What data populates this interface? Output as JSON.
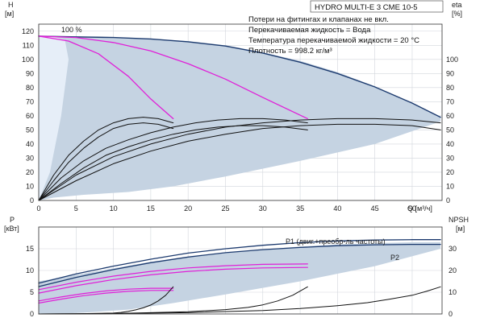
{
  "chart_data": [
    {
      "type": "line",
      "title": "HYDRO MULTI-E 3 CME 10-5",
      "notes": [
        "Потери на фитингах и клапанах не вкл.",
        "Перекачиваемая жидкость = Вода",
        "Температура перекачиваемой жидкости = 20 °C",
        "Плотность = 998.2 кг/м³"
      ],
      "curve_label": "100 %",
      "xlabel": "Q [м³/ч]",
      "ylabel_left": [
        "H",
        "[м]"
      ],
      "ylabel_right": [
        "eta",
        "[%]"
      ],
      "xlim": [
        0,
        54
      ],
      "ylim_left": [
        0,
        125
      ],
      "ylim_right": [
        0,
        125
      ],
      "xticks": [
        0,
        5,
        10,
        15,
        20,
        25,
        30,
        35,
        40,
        45,
        50
      ],
      "yticks_left": [
        0,
        10,
        20,
        30,
        40,
        50,
        60,
        70,
        80,
        90,
        100,
        110,
        120
      ],
      "yticks_right": [
        0,
        10,
        20,
        30,
        40,
        50,
        60,
        70,
        80,
        90,
        100
      ],
      "grid": true,
      "colors": {
        "head": "#1c3a6e",
        "eta": "#111111",
        "head_single": "#e020d8",
        "area": "#c5d3e2"
      },
      "series": [
        {
          "role": "area",
          "x": [
            0,
            2,
            5,
            10,
            15,
            20,
            25,
            30,
            35,
            40,
            45,
            50,
            53.8,
            53.8,
            45,
            35,
            25,
            18,
            12,
            6,
            2,
            0
          ],
          "y": [
            117,
            116.5,
            116,
            115.5,
            114.5,
            113,
            110,
            105,
            99,
            91,
            81,
            69,
            59,
            56,
            40,
            28,
            17,
            10,
            6,
            4,
            2,
            0
          ]
        },
        {
          "role": "area_left",
          "x": [
            0,
            2,
            3.5,
            4,
            3,
            1.5,
            0
          ],
          "y": [
            117,
            116,
            114,
            100,
            60,
            20,
            0
          ]
        },
        {
          "role": "head",
          "x": [
            0,
            5,
            10,
            15,
            20,
            25,
            30,
            35,
            40,
            45,
            50,
            53.8
          ],
          "y": [
            116.5,
            116,
            115.5,
            114.5,
            112.5,
            109.5,
            104.5,
            98,
            90,
            80.5,
            69,
            59
          ]
        },
        {
          "role": "head_single",
          "x": [
            0,
            4,
            8,
            12,
            15,
            18
          ],
          "y": [
            116.5,
            113,
            104,
            88,
            72,
            58
          ]
        },
        {
          "role": "head_single",
          "x": [
            0,
            5,
            10,
            15,
            20,
            25,
            30,
            36
          ],
          "y": [
            116.5,
            115.5,
            112,
            106,
            97,
            86,
            73,
            58
          ]
        },
        {
          "role": "eta",
          "x": [
            0,
            2,
            4,
            6,
            8,
            10,
            12,
            14,
            16,
            18
          ],
          "y": [
            0,
            18,
            32,
            42,
            50,
            55,
            58,
            59,
            58,
            55
          ]
        },
        {
          "role": "eta",
          "x": [
            0,
            2,
            4,
            6,
            8,
            10,
            12,
            14,
            16,
            18
          ],
          "y": [
            0,
            14,
            27,
            37,
            45,
            51,
            54,
            55,
            54,
            51
          ]
        },
        {
          "role": "eta",
          "x": [
            0,
            3,
            6,
            9,
            12,
            15,
            18,
            21,
            24,
            27,
            30,
            33,
            36
          ],
          "y": [
            0,
            16,
            28,
            37,
            43,
            48,
            52,
            55,
            57,
            58,
            58,
            57,
            55
          ]
        },
        {
          "role": "eta",
          "x": [
            0,
            3,
            6,
            9,
            12,
            15,
            18,
            21,
            24,
            27,
            30,
            33,
            36
          ],
          "y": [
            0,
            12,
            23,
            32,
            38,
            43,
            47,
            50,
            52,
            53,
            53,
            52,
            50
          ]
        },
        {
          "role": "eta",
          "x": [
            0,
            5,
            10,
            15,
            20,
            25,
            30,
            35,
            40,
            45,
            50,
            53.8
          ],
          "y": [
            0,
            18,
            31,
            40,
            47,
            52,
            55,
            57,
            58,
            58,
            57,
            55
          ]
        },
        {
          "role": "eta",
          "x": [
            0,
            5,
            10,
            15,
            20,
            25,
            30,
            35,
            40,
            45,
            50,
            53.8
          ],
          "y": [
            0,
            14,
            26,
            35,
            42,
            47,
            51,
            53,
            54,
            54,
            53,
            50
          ]
        }
      ]
    },
    {
      "type": "line",
      "title": "",
      "xlabel": "",
      "ylabel_left": [
        "P",
        "[кВт]"
      ],
      "ylabel_right": [
        "NPSH",
        "[м]"
      ],
      "xlim": [
        0,
        54
      ],
      "ylim_left": [
        0,
        20
      ],
      "ylim_right": [
        0,
        40
      ],
      "yticks_left": [
        0,
        5,
        10,
        15
      ],
      "yticks_right": [
        0,
        10,
        20,
        30
      ],
      "grid": true,
      "labels": {
        "p1": "P1 (двиг.+преобр-ль частоты)",
        "p2": "P2"
      },
      "series": [
        {
          "role": "area",
          "x": [
            0,
            5,
            10,
            15,
            20,
            25,
            30,
            35,
            40,
            45,
            50,
            53.8,
            53.8,
            45,
            35,
            25,
            18,
            12,
            6,
            2,
            0
          ],
          "y": [
            7.5,
            9,
            10.5,
            12,
            13,
            14,
            14.8,
            15.5,
            16,
            16.3,
            16.5,
            16.5,
            15,
            11,
            7.5,
            4.5,
            2.5,
            1,
            0.3,
            0,
            0
          ]
        },
        {
          "role": "p1",
          "x": [
            0,
            5,
            10,
            15,
            20,
            25,
            30,
            35,
            40,
            45,
            50,
            53.8
          ],
          "y": [
            7.1,
            9.2,
            11,
            12.6,
            14,
            15,
            15.8,
            16.4,
            16.8,
            17,
            17.1,
            17.1
          ]
        },
        {
          "role": "p2",
          "x": [
            0,
            5,
            10,
            15,
            20,
            25,
            30,
            35,
            40,
            45,
            50,
            53.8
          ],
          "y": [
            6.3,
            8.4,
            10.2,
            11.8,
            13.1,
            14.1,
            14.8,
            15.3,
            15.7,
            15.9,
            16,
            16
          ]
        },
        {
          "role": "p_single",
          "x": [
            0,
            5,
            10,
            15,
            20,
            25,
            30,
            36
          ],
          "y": [
            5.6,
            7.3,
            8.7,
            9.8,
            10.6,
            11.1,
            11.4,
            11.5
          ]
        },
        {
          "role": "p_single",
          "x": [
            0,
            5,
            10,
            15,
            20,
            25,
            30,
            36
          ],
          "y": [
            4.8,
            6.5,
            7.9,
            9,
            9.8,
            10.3,
            10.6,
            10.7
          ]
        },
        {
          "role": "p_single",
          "x": [
            0,
            3,
            6,
            9,
            12,
            15,
            18
          ],
          "y": [
            3,
            3.9,
            4.7,
            5.3,
            5.7,
            5.9,
            5.9
          ]
        },
        {
          "role": "p_single",
          "x": [
            0,
            3,
            6,
            9,
            12,
            15,
            18
          ],
          "y": [
            2.5,
            3.4,
            4.2,
            4.8,
            5.2,
            5.4,
            5.4
          ]
        },
        {
          "role": "npsh",
          "x": [
            0,
            5,
            10,
            11,
            12,
            13,
            14,
            15,
            16,
            17,
            18
          ],
          "y": [
            0,
            0.1,
            0.4,
            0.7,
            1.2,
            1.9,
            2.8,
            4.1,
            6,
            8.6,
            12.5
          ]
        },
        {
          "role": "npsh",
          "x": [
            0,
            10,
            20,
            25,
            28,
            30,
            32,
            34,
            36
          ],
          "y": [
            0,
            0.2,
            1,
            2,
            3,
            4.2,
            6,
            8.6,
            12.5
          ]
        },
        {
          "role": "npsh",
          "x": [
            0,
            10,
            20,
            30,
            35,
            40,
            44,
            47,
            50,
            52,
            53.8
          ],
          "y": [
            0,
            0.2,
            0.6,
            1.6,
            2.5,
            3.8,
            5.2,
            6.8,
            8.6,
            10.5,
            12.5
          ]
        }
      ]
    }
  ]
}
